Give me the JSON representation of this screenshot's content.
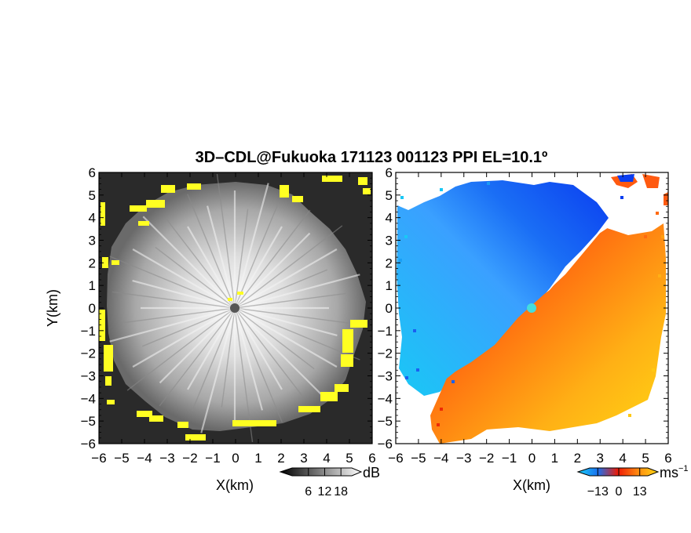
{
  "figure": {
    "title": "3D–CDL@Fukuoka 171123 001123 PPI EL=10.1º"
  },
  "chart_data": [
    {
      "type": "heatmap",
      "name": "reflectivity-ppi",
      "xlabel": "X(km)",
      "ylabel": "Y(km)",
      "xlim": [
        -6,
        6
      ],
      "ylim": [
        -6,
        6
      ],
      "x_ticks": [
        "−6",
        "−5",
        "−4",
        "−3",
        "−2",
        "−1",
        "0",
        "1",
        "2",
        "3",
        "4",
        "5",
        "6"
      ],
      "y_ticks": [
        "6",
        "5",
        "4",
        "3",
        "2",
        "1",
        "0",
        "−1",
        "−2",
        "−3",
        "−4",
        "−5",
        "−6"
      ],
      "colorbar": {
        "unit": "dB",
        "ticks": [
          "6",
          "12",
          "18"
        ],
        "colormap": "grayscale",
        "range": [
          0,
          22
        ]
      },
      "colors": {
        "background": "#2a2a2a",
        "highlight": "#ffff22",
        "center_marker": "#555555"
      }
    },
    {
      "type": "heatmap",
      "name": "doppler-velocity-ppi",
      "xlabel": "X(km)",
      "xlim": [
        -6,
        6
      ],
      "ylim": [
        -6,
        6
      ],
      "x_ticks": [
        "−6",
        "−5",
        "−4",
        "−3",
        "−2",
        "−1",
        "0",
        "1",
        "2",
        "3",
        "4",
        "5",
        "6"
      ],
      "y_ticks": [
        "6",
        "5",
        "4",
        "3",
        "2",
        "1",
        "0",
        "−1",
        "−2",
        "−3",
        "−4",
        "−5",
        "−6"
      ],
      "colorbar": {
        "unit": "ms",
        "unit_exponent": "−1",
        "ticks": [
          "−13",
          "0",
          "13"
        ],
        "colormap": "blue-red-yellow",
        "range": [
          -18,
          18
        ]
      },
      "colors": {
        "negative": "#1a7fff",
        "positive": "#ff4a10",
        "high_positive": "#ffcc10",
        "center_marker": "#44dddd"
      }
    }
  ]
}
